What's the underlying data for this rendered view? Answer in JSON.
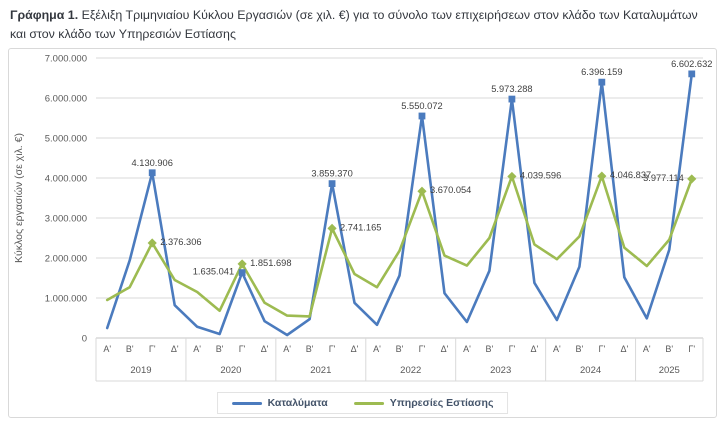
{
  "caption": {
    "prefix": "Γράφημα 1.",
    "rest": " Εξέλιξη Τριμηνιαίου Κύκλου Εργασιών (σε χιλ. €) για το σύνολο των επιχειρήσεων στον κλάδο των Καταλυμάτων και στον κλάδο των Υπηρεσιών Εστίασης"
  },
  "chart_data": {
    "type": "line",
    "title": "Εξέλιξη Τριμηνιαίου Κύκλου Εργασιών (σε χιλ. €)",
    "xlabel": "",
    "ylabel": "Κύκλος εργασιών (σε χιλ. €)",
    "ylim": [
      0,
      7000000
    ],
    "y_tick_step": 1000000,
    "y_tick_labels": [
      "7.000.000",
      "6.000.000",
      "5.000.000",
      "4.000.000",
      "3.000.000",
      "2.000.000",
      "1.000.000",
      "0"
    ],
    "grid": "horizontal",
    "legend_position": "bottom",
    "years": [
      {
        "label": "2019",
        "quarters": [
          "Α'",
          "Β'",
          "Γ'",
          "Δ'"
        ]
      },
      {
        "label": "2020",
        "quarters": [
          "Α'",
          "Β'",
          "Γ'",
          "Δ'"
        ]
      },
      {
        "label": "2021",
        "quarters": [
          "Α'",
          "Β'",
          "Γ'",
          "Δ'"
        ]
      },
      {
        "label": "2022",
        "quarters": [
          "Α'",
          "Β'",
          "Γ'",
          "Δ'"
        ]
      },
      {
        "label": "2023",
        "quarters": [
          "Α'",
          "Β'",
          "Γ'",
          "Δ'"
        ]
      },
      {
        "label": "2024",
        "quarters": [
          "Α'",
          "Β'",
          "Γ'",
          "Δ'"
        ]
      },
      {
        "label": "2025",
        "quarters": [
          "Α'",
          "Β'",
          "Γ'"
        ]
      }
    ],
    "series": [
      {
        "name": "Καταλύματα",
        "color": "#4B7BBE",
        "marker": "square",
        "values": [
          250000,
          1940000,
          4130906,
          820000,
          280000,
          100000,
          1635041,
          420000,
          75000,
          470000,
          3859370,
          880000,
          330000,
          1560000,
          5550072,
          1120000,
          400000,
          1680000,
          5973288,
          1380000,
          450000,
          1780000,
          6396159,
          1520000,
          490000,
          2210000,
          6602632
        ]
      },
      {
        "name": "Υπηρεσίες Εστίασης",
        "color": "#9DBB51",
        "marker": "diamond",
        "values": [
          950000,
          1270000,
          2376306,
          1450000,
          1150000,
          680000,
          1851698,
          880000,
          560000,
          540000,
          2741165,
          1600000,
          1270000,
          2180000,
          3670054,
          2060000,
          1810000,
          2500000,
          4039596,
          2340000,
          1970000,
          2540000,
          4046837,
          2260000,
          1800000,
          2460000,
          3977114
        ]
      }
    ],
    "data_labels": [
      {
        "series": 0,
        "index": 2,
        "text": "4.130.906",
        "pos": "above"
      },
      {
        "series": 1,
        "index": 2,
        "text": "2.376.306",
        "pos": "right"
      },
      {
        "series": 0,
        "index": 6,
        "text": "1.635.041",
        "pos": "left"
      },
      {
        "series": 1,
        "index": 6,
        "text": "1.851.698",
        "pos": "right"
      },
      {
        "series": 0,
        "index": 10,
        "text": "3.859.370",
        "pos": "above"
      },
      {
        "series": 1,
        "index": 10,
        "text": "2.741.165",
        "pos": "right"
      },
      {
        "series": 0,
        "index": 14,
        "text": "5.550.072",
        "pos": "above"
      },
      {
        "series": 1,
        "index": 14,
        "text": "3.670.054",
        "pos": "right"
      },
      {
        "series": 0,
        "index": 18,
        "text": "5.973.288",
        "pos": "above"
      },
      {
        "series": 1,
        "index": 18,
        "text": "4.039.596",
        "pos": "right"
      },
      {
        "series": 0,
        "index": 22,
        "text": "6.396.159",
        "pos": "above"
      },
      {
        "series": 1,
        "index": 22,
        "text": "4.046.837",
        "pos": "right"
      },
      {
        "series": 0,
        "index": 26,
        "text": "6.602.632",
        "pos": "above"
      },
      {
        "series": 1,
        "index": 26,
        "text": "3.977.114",
        "pos": "left"
      }
    ],
    "colors": {
      "grid": "#D9D9D9",
      "axis_line": "#C6C6C6",
      "axis_text": "#595959",
      "label_text": "#404040"
    }
  }
}
